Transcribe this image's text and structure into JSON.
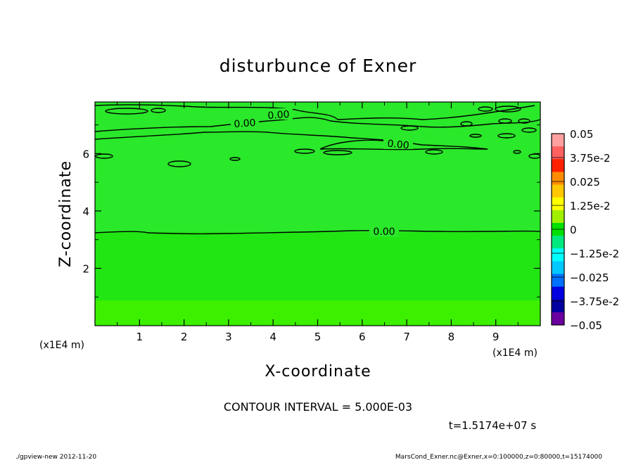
{
  "chart_data": {
    "type": "contour",
    "title": "disturbunce of Exner",
    "xlabel": "X-coordinate",
    "ylabel": "Z-coordinate",
    "x_unit": "(x1E4 m)",
    "y_unit": "(x1E4 m)",
    "xlim": [
      0,
      10
    ],
    "ylim": [
      0,
      7.8
    ],
    "x_ticks": [
      1,
      2,
      3,
      4,
      5,
      6,
      7,
      8,
      9
    ],
    "y_ticks": [
      2,
      4,
      6
    ],
    "contour_interval_text": "CONTOUR INTERVAL = 5.000E-03",
    "time_text": "t=1.5174e+07 s",
    "contour_labels": [
      "0.00",
      "0.00",
      "0.00",
      "0.00"
    ],
    "colorbar": {
      "labels": [
        "0.05",
        "3.75e-2",
        "0.025",
        "1.25e-2",
        "0",
        "−1.25e-2",
        "−0.025",
        "−3.75e-2",
        "−0.05"
      ],
      "colors": [
        "#ffa0a0",
        "#ff6060",
        "#ff2000",
        "#ff8c00",
        "#ffc800",
        "#ffff00",
        "#a0f000",
        "#00e000",
        "#00e880",
        "#00ffff",
        "#00c8ff",
        "#0070ff",
        "#0000e0",
        "#0000a0",
        "#6a00a0"
      ]
    }
  },
  "footer": {
    "left": "./gpview-new  2012-11-20",
    "right": "MarsCond_Exner.nc@Exner,x=0:100000,z=0:80000,t=15174000"
  }
}
